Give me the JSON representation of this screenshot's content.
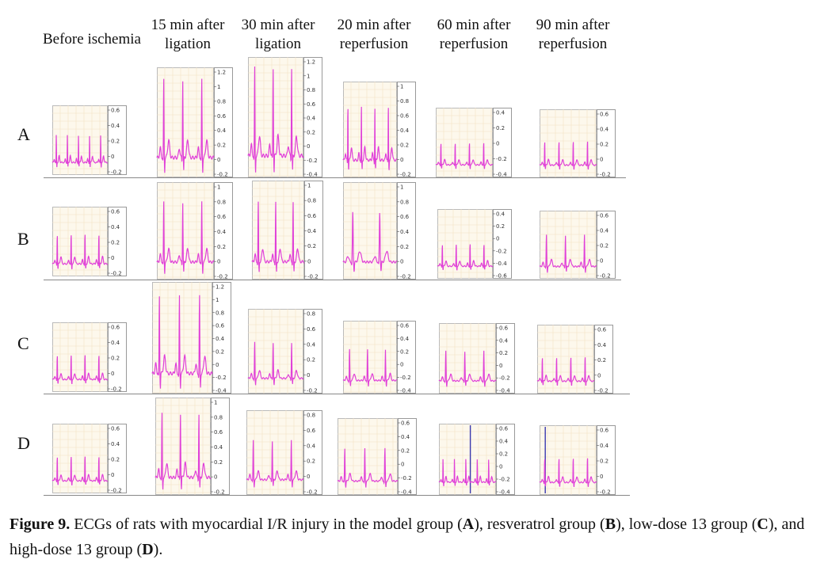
{
  "column_headers": [
    "Before ischemia",
    "15 min after\nligation",
    "30 min after\nligation",
    "20 min after\nreperfusion",
    "60 min after\nreperfusion",
    "90 min after\nreperfusion"
  ],
  "row_labels": [
    "A",
    "B",
    "C",
    "D"
  ],
  "ecg_color": "#e040d8",
  "marker_color": "#3a3ab0",
  "panels": [
    [
      {
        "ticks": [
          "0.6",
          "0.4",
          "0.2",
          "0",
          "-0.2"
        ]
      },
      {
        "ticks": [
          "1.2",
          "1",
          "0.8",
          "0.6",
          "0.4",
          "0.2",
          "0",
          "-0.2"
        ]
      },
      {
        "ticks": [
          "1.2",
          "1",
          "0.8",
          "0.6",
          "0.4",
          "0.2",
          "0",
          "-0.2",
          "-0.4"
        ]
      },
      {
        "ticks": [
          "1",
          "0.8",
          "0.6",
          "0.4",
          "0.2",
          "0",
          "-0.2"
        ]
      },
      {
        "ticks": [
          "0.4",
          "0.2",
          "0",
          "-0.2",
          "-0.4"
        ]
      },
      {
        "ticks": [
          "0.6",
          "0.4",
          "0.2",
          "0",
          "-0.2"
        ]
      }
    ],
    [
      {
        "ticks": [
          "0.6",
          "0.4",
          "0.2",
          "0",
          "-0.2"
        ]
      },
      {
        "ticks": [
          "1",
          "0.8",
          "0.6",
          "0.4",
          "0.2",
          "0",
          "-0.2"
        ]
      },
      {
        "ticks": [
          "1",
          "0.8",
          "0.6",
          "0.4",
          "0.2",
          "0",
          "-0.2"
        ]
      },
      {
        "ticks": [
          "1",
          "0.8",
          "0.6",
          "0.4",
          "0.2",
          "0",
          "-0.2"
        ]
      },
      {
        "ticks": [
          "0.4",
          "0.2",
          "0",
          "-0.2",
          "-0.4",
          "-0.6"
        ]
      },
      {
        "ticks": [
          "0.6",
          "0.4",
          "0.2",
          "0",
          "-0.2"
        ]
      }
    ],
    [
      {
        "ticks": [
          "0.6",
          "0.4",
          "0.2",
          "0",
          "-0.2"
        ]
      },
      {
        "ticks": [
          "1.2",
          "1",
          "0.8",
          "0.6",
          "0.4",
          "0.2",
          "0",
          "-0.2",
          "-0.4"
        ]
      },
      {
        "ticks": [
          "0.8",
          "0.6",
          "0.4",
          "0.2",
          "0",
          "-0.2"
        ]
      },
      {
        "ticks": [
          "0.6",
          "0.4",
          "0.2",
          "0",
          "-0.2",
          "-0.4"
        ]
      },
      {
        "ticks": [
          "0.6",
          "0.4",
          "0.2",
          "0",
          "-0.2",
          "-0.4"
        ]
      },
      {
        "ticks": [
          "0.6",
          "0.4",
          "0.2",
          "0",
          "-0.2"
        ]
      }
    ],
    [
      {
        "ticks": [
          "0.6",
          "0.4",
          "0.2",
          "0",
          "-0.2"
        ]
      },
      {
        "ticks": [
          "1",
          "0.8",
          "0.6",
          "0.4",
          "0.2",
          "0",
          "-0.2"
        ]
      },
      {
        "ticks": [
          "0.8",
          "0.6",
          "0.4",
          "0.2",
          "0",
          "-0.2"
        ]
      },
      {
        "ticks": [
          "0.6",
          "0.4",
          "0.2",
          "0",
          "-0.2",
          "-0.4"
        ]
      },
      {
        "ticks": [
          "0.6",
          "0.4",
          "0.2",
          "0",
          "-0.2",
          "-0.4"
        ]
      },
      {
        "ticks": [
          "0.6",
          "0.4",
          "0.2",
          "0",
          "-0.2"
        ]
      }
    ]
  ],
  "caption": {
    "label": "Figure 9.",
    "parts": [
      {
        "t": " ECGs of rats with myocardial I/R injury in the model group (",
        "b": false
      },
      {
        "t": "A",
        "b": true
      },
      {
        "t": "), resveratrol group (",
        "b": false
      },
      {
        "t": "B",
        "b": true
      },
      {
        "t": "), low-dose 13 group (",
        "b": false
      },
      {
        "t": "C",
        "b": true
      },
      {
        "t": "), and high-dose 13 group (",
        "b": false
      },
      {
        "t": "D",
        "b": true
      },
      {
        "t": ").",
        "b": false
      }
    ]
  }
}
